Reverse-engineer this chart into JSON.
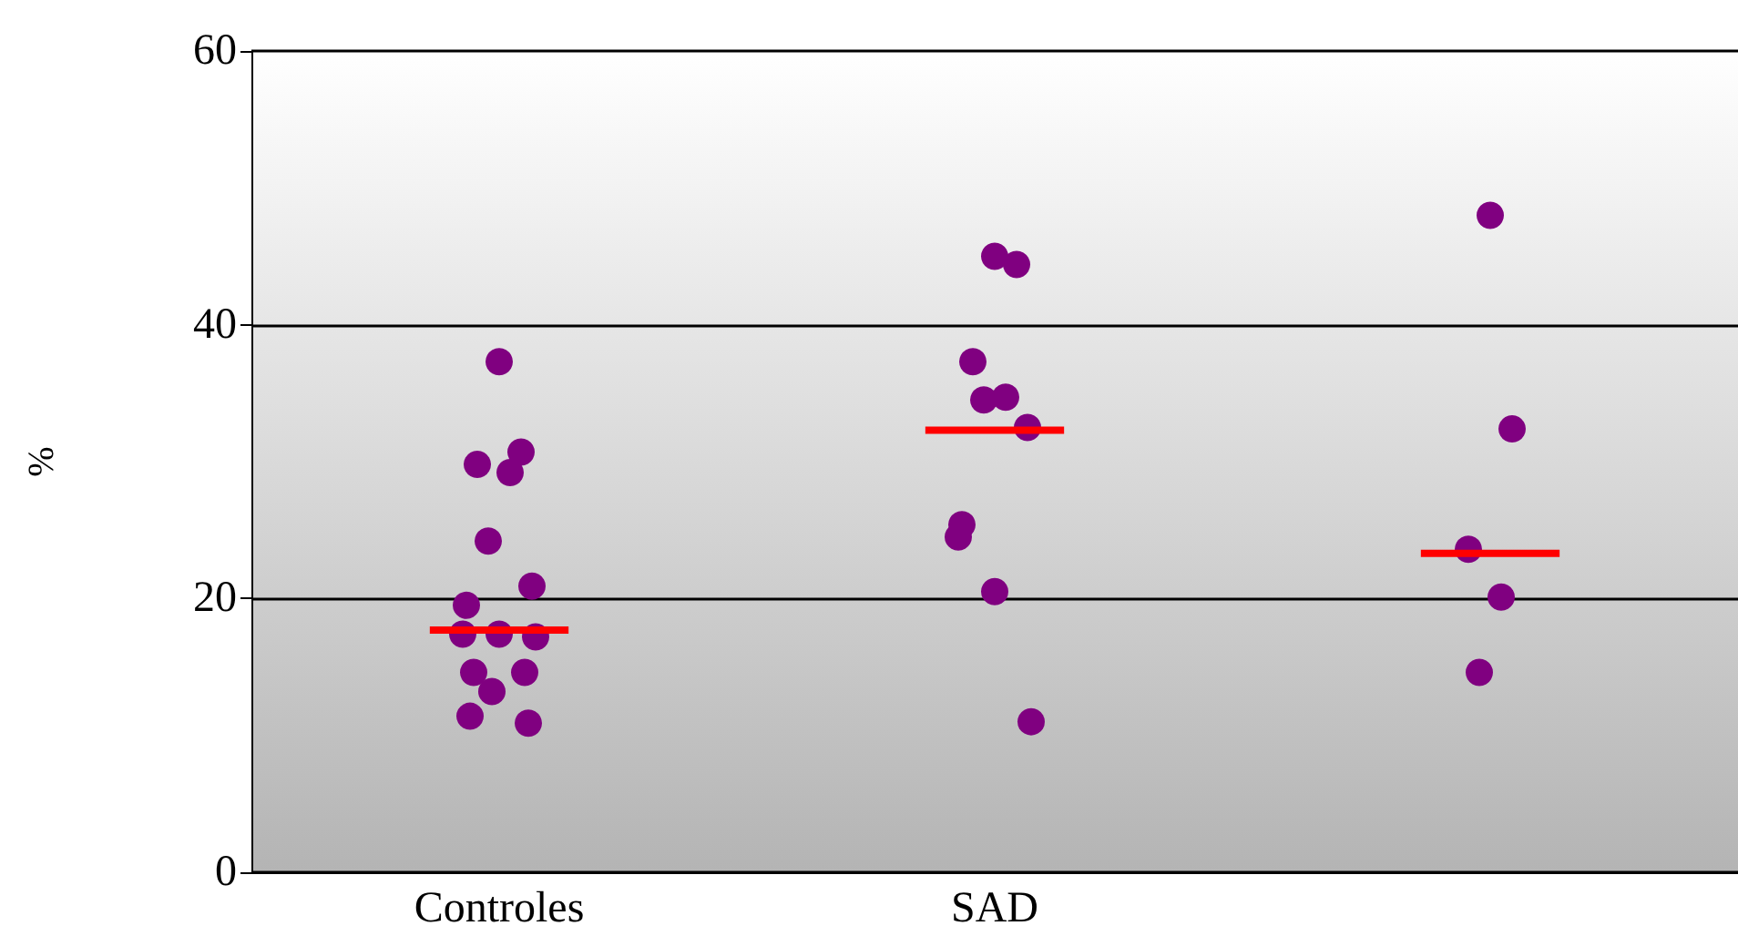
{
  "chart_data": {
    "type": "scatter",
    "ylabel": "%",
    "categories": [
      "Controles",
      "SAD",
      null
    ],
    "ylim": [
      0,
      60
    ],
    "yticks": [
      0,
      20,
      40,
      60
    ],
    "grid": "y",
    "marker": "circle",
    "series": [
      {
        "color": "#800080",
        "x": [
          "Controles",
          "Controles",
          "Controles",
          "Controles",
          "Controles",
          "Controles",
          "Controles",
          "Controles",
          "Controles",
          "Controles",
          "Controles",
          "Controles",
          "Controles",
          "Controles",
          "Controles"
        ],
        "values": [
          37.3,
          30.7,
          29.8,
          29.2,
          24.2,
          20.9,
          19.5,
          17.4,
          17.4,
          17.2,
          14.6,
          14.6,
          13.2,
          11.4,
          10.9
        ]
      },
      {
        "color": "#800080",
        "x": [
          "SAD",
          "SAD",
          "SAD",
          "SAD",
          "SAD",
          "SAD",
          "SAD",
          "SAD",
          "SAD",
          "SAD"
        ],
        "values": [
          45.0,
          44.4,
          37.3,
          34.7,
          34.5,
          32.5,
          25.4,
          24.5,
          20.5,
          11.0
        ]
      },
      {
        "color": "#800080",
        "x": [
          null,
          null,
          null,
          null,
          null
        ],
        "values": [
          48.0,
          32.4,
          23.6,
          20.1,
          14.6
        ]
      }
    ],
    "ref_lines": [
      {
        "axis": "y",
        "value": 17.7,
        "color": "#ff0000"
      },
      {
        "axis": "y",
        "value": 32.3,
        "color": "#ff0000"
      },
      {
        "axis": "y",
        "value": 23.3,
        "color": "#ff0000"
      }
    ]
  }
}
